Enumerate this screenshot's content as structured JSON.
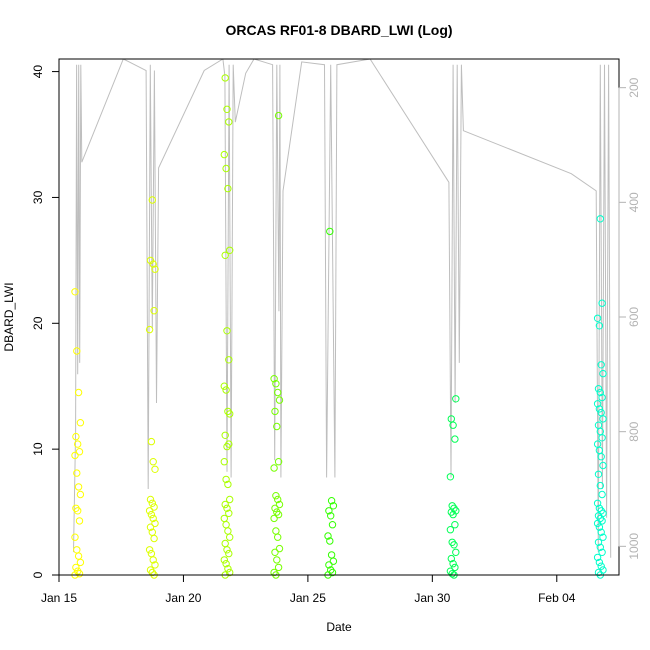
{
  "chart_data": {
    "type": "scatter",
    "title": "ORCAS RF01-8 DBARD_LWI (Log)",
    "xlabel": "Date",
    "ylabel": "DBARD_LWI",
    "xlim": [
      "2016-01-15T00:00",
      "2016-02-06T12:00"
    ],
    "ylim": [
      0,
      41
    ],
    "y2lim": [
      1050,
      150
    ],
    "x_ticks": [
      {
        "date": "2016-01-15",
        "label": "Jan 15"
      },
      {
        "date": "2016-01-20",
        "label": "Jan 20"
      },
      {
        "date": "2016-01-25",
        "label": "Jan 25"
      },
      {
        "date": "2016-01-30",
        "label": "Jan 30"
      },
      {
        "date": "2016-02-04",
        "label": "Feb 04"
      }
    ],
    "y_ticks": [
      0,
      10,
      20,
      30,
      40
    ],
    "y2_ticks": [
      200,
      400,
      600,
      800,
      1000
    ],
    "colors": {
      "pressure_trace": "#bebebe",
      "right_axis": "#b3b3b3",
      "frame": "#000000"
    },
    "flights": [
      {
        "date": "2016-01-15T18:00",
        "color": "#ffff00",
        "values": [
          22.5,
          17.8,
          14.5,
          12.1,
          11.0,
          10.4,
          9.8,
          9.5,
          8.1,
          7.0,
          6.4,
          5.3,
          5.1,
          4.3,
          3.0,
          2.0,
          1.5,
          1.0,
          0.6,
          0.3,
          0.1,
          0.0
        ]
      },
      {
        "date": "2016-01-18T18:00",
        "color": "#ddff00",
        "values": [
          24.7,
          24.3,
          25.0,
          29.8,
          21.0,
          19.5,
          10.6,
          9.0,
          8.4,
          6.0,
          5.7,
          5.4,
          5.1,
          4.8,
          4.5,
          4.1,
          3.8,
          3.4,
          2.9,
          2.0,
          1.7,
          1.2,
          0.8,
          0.4,
          0.2,
          0.0
        ]
      },
      {
        "date": "2016-01-21T18:00",
        "color": "#aaff00",
        "values": [
          39.5,
          37.0,
          36.0,
          33.4,
          32.3,
          30.7,
          25.8,
          25.4,
          19.4,
          17.1,
          15.0,
          14.7,
          13.0,
          12.8,
          11.1,
          10.2,
          10.4,
          9.0,
          7.6,
          7.2,
          6.0,
          5.6,
          5.3,
          4.9,
          4.5,
          4.0,
          3.5,
          3.0,
          2.5,
          2.0,
          1.7,
          1.2,
          0.9,
          0.5,
          0.2,
          0.0
        ]
      },
      {
        "date": "2016-01-23T18:00",
        "color": "#77ff00",
        "values": [
          36.5,
          15.6,
          15.2,
          14.5,
          13.9,
          13.0,
          11.8,
          9.0,
          8.5,
          6.3,
          6.0,
          5.6,
          5.3,
          5.0,
          4.8,
          4.5,
          3.5,
          3.0,
          2.1,
          1.8,
          1.2,
          0.6,
          0.2,
          0.0
        ]
      },
      {
        "date": "2016-01-25T22:00",
        "color": "#33ff00",
        "values": [
          27.3,
          5.9,
          5.5,
          5.1,
          4.7,
          4.0,
          3.1,
          2.7,
          1.6,
          1.1,
          0.8,
          0.4,
          0.2,
          0.0
        ]
      },
      {
        "date": "2016-01-30T20:00",
        "color": "#00ff55",
        "values": [
          14.0,
          12.4,
          11.9,
          10.8,
          7.8,
          5.5,
          5.3,
          5.1,
          5.0,
          4.8,
          4.0,
          3.6,
          2.6,
          2.4,
          1.8,
          1.3,
          0.9,
          0.6,
          0.3,
          0.1,
          0.0
        ]
      },
      {
        "date": "2016-02-05T18:00",
        "color": "#00ffcc",
        "values": [
          28.3,
          21.6,
          20.4,
          19.8,
          16.7,
          16.0,
          14.8,
          14.5,
          14.1,
          13.6,
          13.2,
          12.9,
          12.4,
          11.9,
          11.4,
          10.9,
          10.4,
          9.9,
          9.4,
          8.7,
          8.0,
          7.1,
          6.4,
          5.7,
          5.3,
          5.1,
          4.9,
          4.7,
          4.5,
          4.3,
          4.1,
          3.8,
          3.4,
          3.0,
          2.6,
          2.2,
          1.8,
          1.4,
          1.0,
          0.7,
          0.4,
          0.2,
          0.0
        ]
      }
    ],
    "pressure_path": [
      [
        "2016-01-15T14:00",
        1010
      ],
      [
        "2016-01-15T16:00",
        800
      ],
      [
        "2016-01-15T17:00",
        160
      ],
      [
        "2016-01-15T18:00",
        700
      ],
      [
        "2016-01-15T19:00",
        160
      ],
      [
        "2016-01-15T20:00",
        680
      ],
      [
        "2016-01-15T21:00",
        160
      ],
      [
        "2016-01-15T22:00",
        330
      ],
      [
        "2016-01-17T14:00",
        150
      ],
      [
        "2016-01-18T12:00",
        170
      ],
      [
        "2016-01-18T14:00",
        900
      ],
      [
        "2016-01-18T16:00",
        160
      ],
      [
        "2016-01-18T18:00",
        620
      ],
      [
        "2016-01-18T20:00",
        170
      ],
      [
        "2016-01-18T22:00",
        750
      ],
      [
        "2016-01-19T00:00",
        340
      ],
      [
        "2016-01-20T20:00",
        170
      ],
      [
        "2016-01-21T14:00",
        150
      ],
      [
        "2016-01-21T16:00",
        180
      ],
      [
        "2016-01-21T18:00",
        870
      ],
      [
        "2016-01-21T20:00",
        160
      ],
      [
        "2016-01-21T22:00",
        880
      ],
      [
        "2016-01-22T00:00",
        160
      ],
      [
        "2016-01-22T02:00",
        260
      ],
      [
        "2016-01-22T12:00",
        175
      ],
      [
        "2016-01-22T20:00",
        150
      ],
      [
        "2016-01-23T14:00",
        160
      ],
      [
        "2016-01-23T16:00",
        850
      ],
      [
        "2016-01-23T18:00",
        160
      ],
      [
        "2016-01-23T20:00",
        590
      ],
      [
        "2016-01-23T21:00",
        160
      ],
      [
        "2016-01-23T22:00",
        880
      ],
      [
        "2016-01-24T00:00",
        380
      ],
      [
        "2016-01-24T18:00",
        155
      ],
      [
        "2016-01-25T16:00",
        160
      ],
      [
        "2016-01-25T18:00",
        880
      ],
      [
        "2016-01-25T22:00",
        160
      ],
      [
        "2016-01-26T02:00",
        880
      ],
      [
        "2016-01-26T04:00",
        160
      ],
      [
        "2016-01-27T12:00",
        150
      ],
      [
        "2016-01-30T16:00",
        365
      ],
      [
        "2016-01-30T18:00",
        880
      ],
      [
        "2016-01-30T20:00",
        160
      ],
      [
        "2016-01-30T22:00",
        750
      ],
      [
        "2016-01-31T00:00",
        160
      ],
      [
        "2016-01-31T02:00",
        680
      ],
      [
        "2016-01-31T04:00",
        160
      ],
      [
        "2016-01-31T06:00",
        275
      ],
      [
        "2016-02-04T14:00",
        350
      ],
      [
        "2016-02-05T14:00",
        380
      ],
      [
        "2016-02-05T16:00",
        1010
      ],
      [
        "2016-02-05T18:00",
        160
      ],
      [
        "2016-02-05T20:00",
        900
      ],
      [
        "2016-02-05T22:00",
        160
      ],
      [
        "2016-02-06T00:00",
        950
      ],
      [
        "2016-02-06T02:00",
        160
      ],
      [
        "2016-02-06T04:00",
        1020
      ]
    ]
  }
}
